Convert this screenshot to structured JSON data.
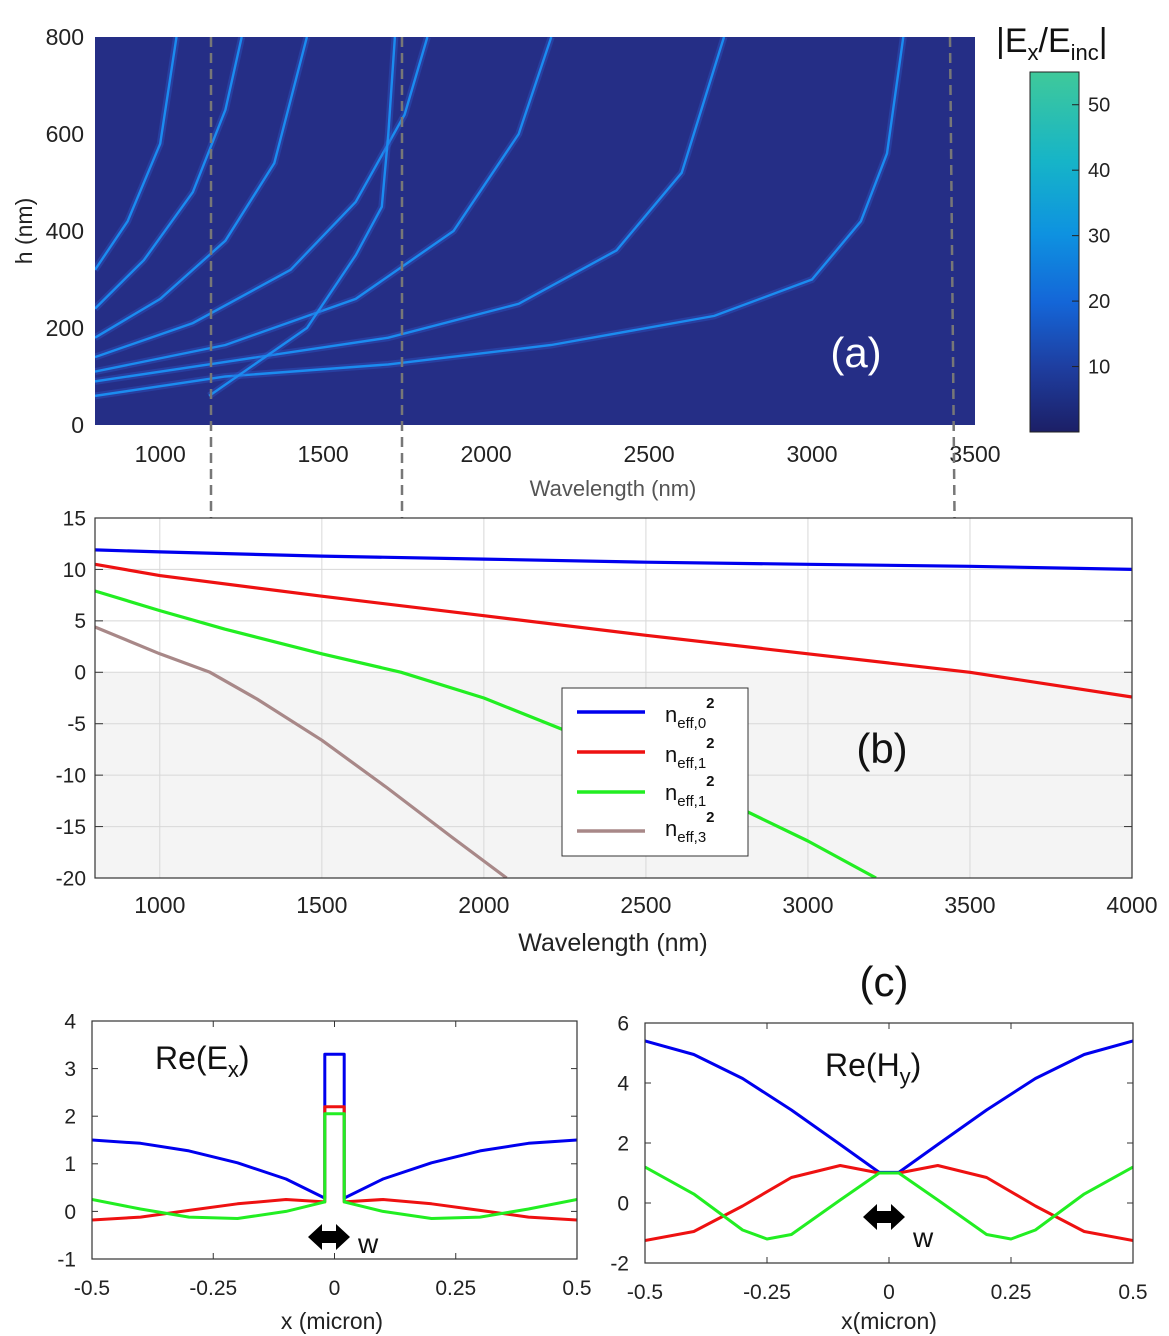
{
  "colors": {
    "mode0": "#0000ee",
    "mode1": "#ee1111",
    "mode2": "#22ee22",
    "mode3": "#a88888",
    "mapBackground": "#252e86",
    "resonance": "#1b8cf0",
    "guide": "#777777"
  },
  "chart_data": [
    {
      "id": "a",
      "type": "heatmap",
      "panel_label": "(a)",
      "xlabel": "Wavelength (nm)",
      "ylabel": "h (nm)",
      "xlim": [
        800,
        3500
      ],
      "ylim": [
        0,
        800
      ],
      "xticks": [
        "1000",
        "1500",
        "2000",
        "2500",
        "3000",
        "3500"
      ],
      "yticks": [
        "0",
        "200",
        "400",
        "600",
        "800"
      ],
      "colorbar": {
        "title_main": "|E",
        "title_sub1": "x",
        "title_mid": "/E",
        "title_sub2": "inc",
        "title_end": "|",
        "range": [
          0,
          55
        ],
        "ticks": [
          "10",
          "20",
          "30",
          "40",
          "50"
        ],
        "tick_values": [
          10,
          20,
          30,
          40,
          50
        ]
      },
      "resonance_curves": [
        [
          [
            800,
            60
          ],
          [
            1200,
            100
          ],
          [
            1700,
            125
          ],
          [
            2200,
            165
          ],
          [
            2700,
            225
          ],
          [
            3000,
            300
          ],
          [
            3150,
            420
          ],
          [
            3230,
            560
          ],
          [
            3280,
            800
          ]
        ],
        [
          [
            800,
            90
          ],
          [
            1200,
            130
          ],
          [
            1700,
            180
          ],
          [
            2100,
            250
          ],
          [
            2400,
            360
          ],
          [
            2600,
            520
          ],
          [
            2730,
            800
          ]
        ],
        [
          [
            800,
            110
          ],
          [
            1200,
            165
          ],
          [
            1600,
            260
          ],
          [
            1900,
            400
          ],
          [
            2100,
            600
          ],
          [
            2200,
            800
          ]
        ],
        [
          [
            800,
            140
          ],
          [
            1100,
            210
          ],
          [
            1400,
            320
          ],
          [
            1600,
            460
          ],
          [
            1750,
            640
          ],
          [
            1820,
            800
          ]
        ],
        [
          [
            800,
            180
          ],
          [
            1000,
            260
          ],
          [
            1200,
            380
          ],
          [
            1350,
            540
          ],
          [
            1450,
            800
          ]
        ],
        [
          [
            800,
            240
          ],
          [
            950,
            340
          ],
          [
            1100,
            480
          ],
          [
            1200,
            650
          ],
          [
            1250,
            800
          ]
        ],
        [
          [
            1150,
            60
          ],
          [
            1450,
            200
          ],
          [
            1600,
            350
          ],
          [
            1680,
            450
          ],
          [
            1700,
            600
          ],
          [
            1720,
            800
          ]
        ],
        [
          [
            800,
            320
          ],
          [
            900,
            420
          ],
          [
            1000,
            580
          ],
          [
            1050,
            800
          ]
        ]
      ]
    },
    {
      "id": "b",
      "type": "line",
      "panel_label": "(b)",
      "xlabel": "Wavelength (nm)",
      "xlim": [
        800,
        4000
      ],
      "ylim": [
        -20,
        15
      ],
      "grid": true,
      "legend_position": "center",
      "xticks": [
        "1000",
        "1500",
        "2000",
        "2500",
        "3000",
        "3500",
        "4000"
      ],
      "yticks": [
        "15",
        "10",
        "5",
        "0",
        "-5",
        "-10",
        "-15",
        "-20"
      ],
      "series": [
        {
          "name": "n",
          "sub": "eff,0",
          "sup": "2",
          "color_key": "mode0",
          "x": [
            800,
            1000,
            1500,
            2000,
            2500,
            3000,
            3500,
            4000
          ],
          "y": [
            11.9,
            11.7,
            11.3,
            11.0,
            10.7,
            10.5,
            10.3,
            10.0
          ]
        },
        {
          "name": "n",
          "sub": "eff,1",
          "sup": "2",
          "color_key": "mode1",
          "x": [
            800,
            1000,
            1500,
            2000,
            2500,
            3000,
            3500,
            4000
          ],
          "y": [
            10.5,
            9.4,
            7.4,
            5.5,
            3.6,
            1.8,
            0.0,
            -2.4
          ]
        },
        {
          "name": "n",
          "sub": "eff,1",
          "sup": "2",
          "color_key": "mode2",
          "x": [
            800,
            1000,
            1200,
            1500,
            1745,
            2000,
            2500,
            3000,
            3210
          ],
          "y": [
            7.9,
            6.0,
            4.2,
            1.8,
            0.0,
            -2.5,
            -8.8,
            -16.4,
            -20.0
          ]
        },
        {
          "name": "n",
          "sub": "eff,3",
          "sup": "2",
          "color_key": "mode3",
          "x": [
            800,
            1000,
            1155,
            1300,
            1500,
            1700,
            1900,
            2070
          ],
          "y": [
            4.4,
            1.8,
            0.0,
            -2.6,
            -6.6,
            -11.2,
            -16.0,
            -20.0
          ]
        }
      ]
    },
    {
      "id": "c-left",
      "type": "line",
      "panel_label": "(c)",
      "xlabel": "x (micron)",
      "xlim": [
        -0.5,
        0.5
      ],
      "ylim": [
        -1,
        4
      ],
      "xticks": [
        "-0.5",
        "-0.25",
        "0",
        "0.25",
        "0.5"
      ],
      "yticks": [
        "4",
        "3",
        "2",
        "1",
        "0",
        "-1"
      ],
      "annotation": {
        "main": "Re(E",
        "sub": "x",
        "end": ")"
      },
      "width_label": "w",
      "series": [
        {
          "color_key": "mode0",
          "x": [
            -0.5,
            -0.4,
            -0.3,
            -0.2,
            -0.1,
            -0.02,
            -0.02,
            0.02,
            0.02,
            0.1,
            0.2,
            0.3,
            0.4,
            0.5
          ],
          "y": [
            1.5,
            1.43,
            1.27,
            1.02,
            0.68,
            0.28,
            3.3,
            3.3,
            0.28,
            0.68,
            1.02,
            1.27,
            1.43,
            1.5
          ]
        },
        {
          "color_key": "mode1",
          "x": [
            -0.5,
            -0.4,
            -0.3,
            -0.2,
            -0.1,
            -0.02,
            -0.02,
            0.02,
            0.02,
            0.1,
            0.2,
            0.3,
            0.4,
            0.5
          ],
          "y": [
            -0.18,
            -0.12,
            0.02,
            0.16,
            0.25,
            0.2,
            2.2,
            2.2,
            0.2,
            0.25,
            0.16,
            0.02,
            -0.12,
            -0.18
          ]
        },
        {
          "color_key": "mode2",
          "x": [
            -0.5,
            -0.4,
            -0.3,
            -0.2,
            -0.1,
            -0.02,
            -0.02,
            0.02,
            0.02,
            0.1,
            0.2,
            0.3,
            0.4,
            0.5
          ],
          "y": [
            0.25,
            0.05,
            -0.12,
            -0.15,
            0.0,
            0.2,
            2.05,
            2.05,
            0.2,
            0.0,
            -0.15,
            -0.12,
            0.05,
            0.25
          ]
        }
      ]
    },
    {
      "id": "c-right",
      "type": "line",
      "xlabel": "x(micron)",
      "xlim": [
        -0.5,
        0.5
      ],
      "ylim": [
        -2,
        6
      ],
      "xticks": [
        "-0.5",
        "-0.25",
        "0",
        "0.25",
        "0.5"
      ],
      "yticks": [
        "6",
        "4",
        "2",
        "0",
        "-2"
      ],
      "annotation": {
        "main": "Re(H",
        "sub": "y",
        "end": ")"
      },
      "width_label": "w",
      "series": [
        {
          "color_key": "mode0",
          "x": [
            -0.5,
            -0.4,
            -0.3,
            -0.2,
            -0.1,
            -0.02,
            0.02,
            0.1,
            0.2,
            0.3,
            0.4,
            0.5
          ],
          "y": [
            5.4,
            4.95,
            4.15,
            3.1,
            1.95,
            1.02,
            1.02,
            1.95,
            3.1,
            4.15,
            4.95,
            5.4
          ]
        },
        {
          "color_key": "mode1",
          "x": [
            -0.5,
            -0.4,
            -0.3,
            -0.2,
            -0.1,
            -0.02,
            0.02,
            0.1,
            0.2,
            0.3,
            0.4,
            0.5
          ],
          "y": [
            -1.25,
            -0.95,
            -0.1,
            0.85,
            1.25,
            1.0,
            1.0,
            1.25,
            0.85,
            -0.1,
            -0.95,
            -1.25
          ]
        },
        {
          "color_key": "mode2",
          "x": [
            -0.5,
            -0.4,
            -0.3,
            -0.25,
            -0.2,
            -0.1,
            -0.02,
            0.02,
            0.1,
            0.2,
            0.25,
            0.3,
            0.4,
            0.5
          ],
          "y": [
            1.2,
            0.3,
            -0.9,
            -1.2,
            -1.05,
            0.1,
            1.0,
            1.0,
            0.1,
            -1.05,
            -1.2,
            -0.9,
            0.3,
            1.2
          ]
        }
      ]
    }
  ]
}
